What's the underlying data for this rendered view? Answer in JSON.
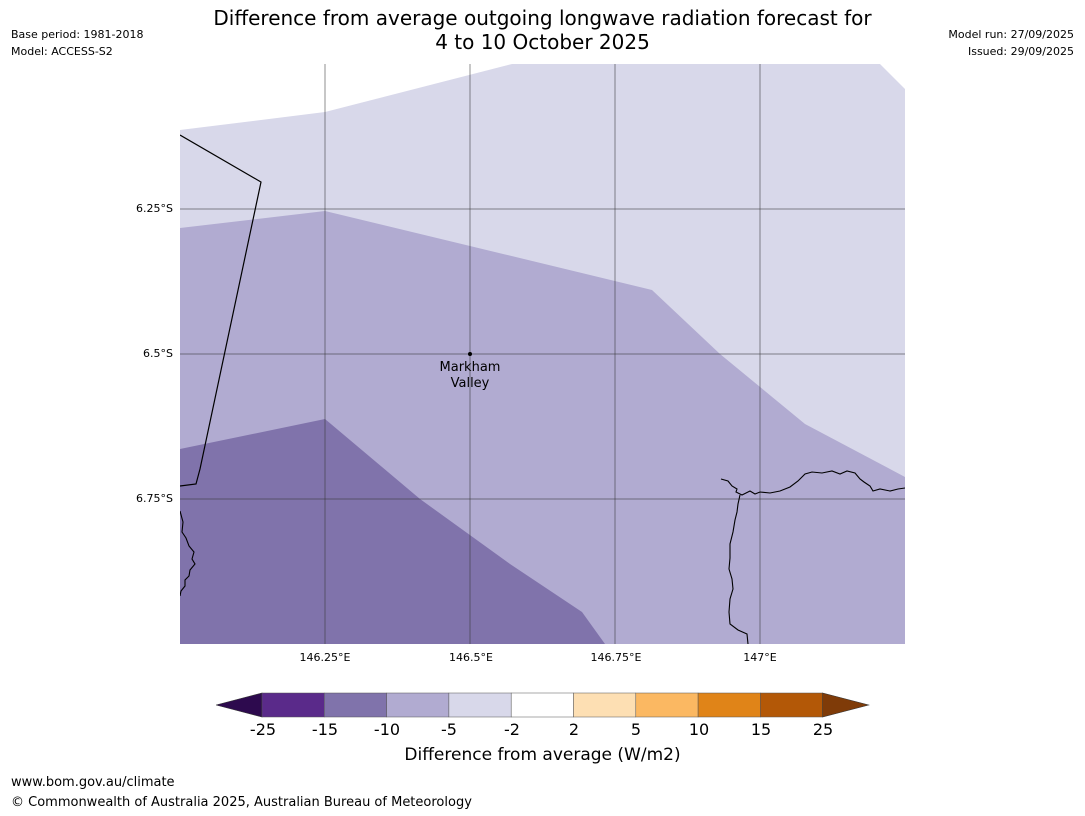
{
  "header": {
    "base_period": "Base period: 1981-2018",
    "model": "Model: ACCESS-S2",
    "model_run": "Model run: 27/09/2025",
    "issued": "Issued: 29/09/2025",
    "title_line1": "Difference from average outgoing longwave radiation forecast for",
    "title_line2": "4 to 10 October 2025"
  },
  "map": {
    "latitude_labels": [
      "6.25°S",
      "6.5°S",
      "6.75°S"
    ],
    "longitude_labels": [
      "146.25°E",
      "146.5°E",
      "146.75°E",
      "147°E"
    ],
    "place": {
      "name_line1": "Markham",
      "name_line2": "Valley"
    },
    "zone_colors": {
      "minus_2_to_minus_5": "#d8d8ea",
      "minus_5_to_minus_10": "#b1abd1",
      "minus_10_to_minus_15": "#8073ab"
    }
  },
  "colorbar": {
    "title": "Difference from average (W/m2)",
    "ticks": [
      "-25",
      "-15",
      "-10",
      "-5",
      "-2",
      "2",
      "5",
      "10",
      "15",
      "25"
    ],
    "colors": [
      "#2d0a4e",
      "#5a2a8a",
      "#8073ab",
      "#b1abd1",
      "#d8d8ea",
      "#ffffff",
      "#fddfb3",
      "#fbb862",
      "#e08418",
      "#b35807",
      "#7f3b08"
    ]
  },
  "footer": {
    "url": "www.bom.gov.au/climate",
    "copyright": "© Commonwealth of Australia 2025, Australian Bureau of Meteorology"
  }
}
